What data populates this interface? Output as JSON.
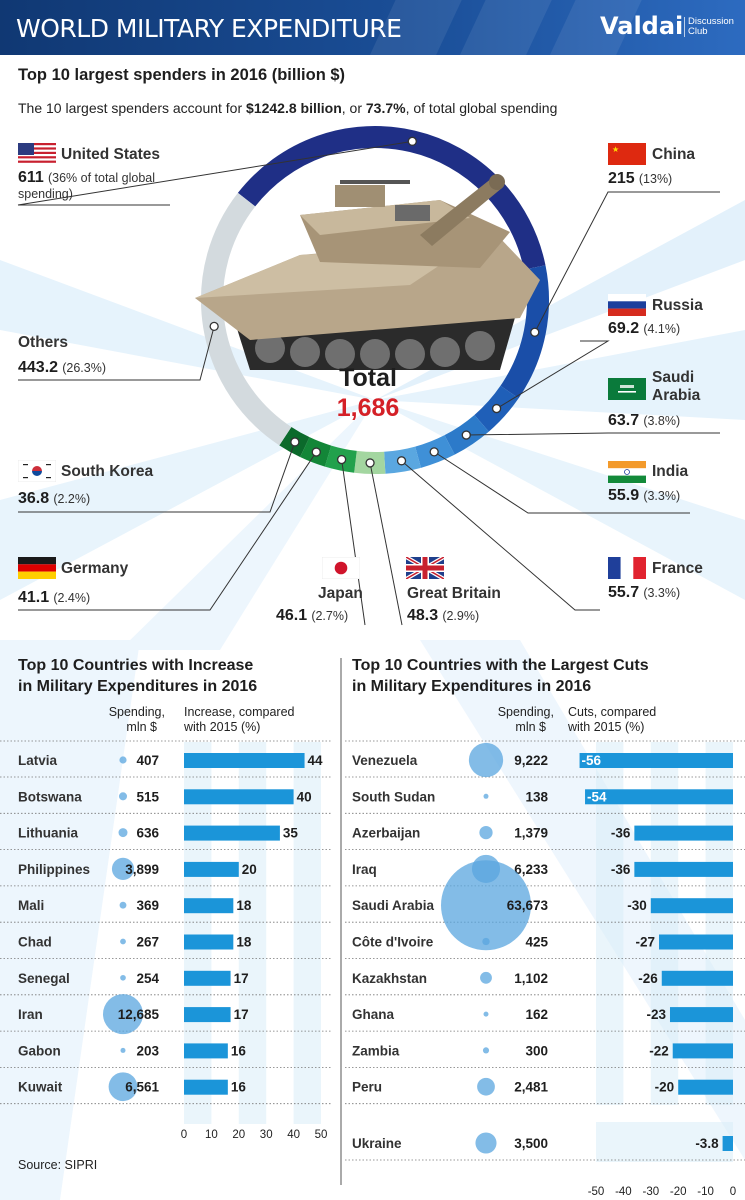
{
  "header": {
    "title": "WORLD MILITARY EXPENDITURE",
    "brand": "Valdai",
    "brand_sub": "Discussion Club"
  },
  "section1": {
    "title": "Top 10 largest spenders in 2016 (billion $)",
    "lead_pre": "The 10 largest spenders account for ",
    "lead_b1": "$1242.8 billion",
    "lead_mid": ", or ",
    "lead_b2": "73.7%",
    "lead_post": ", of total global spending"
  },
  "total": {
    "label": "Total",
    "value": "1,686"
  },
  "colors": {
    "header": "#1a4e97",
    "us": "#1f2f86",
    "china": "#1a4ea8",
    "russia": "#1f5fb8",
    "saudi": "#2c7ac9",
    "india": "#3f90d7",
    "france": "#5aa7e0",
    "gb": "#a3d6a0",
    "japan": "#22a14c",
    "germany": "#138638",
    "skorea": "#0b6a2b",
    "others": "#d3dade",
    "bar": "#1b95d9",
    "bubble": "#5aa6df",
    "total": "#d42027"
  },
  "chart_data": [
    {
      "type": "pie",
      "title": "Top 10 largest spenders in 2016 (billion $)",
      "slices": [
        {
          "key": "us",
          "name": "United States",
          "value": 611,
          "value_text": "611",
          "pct": "(36% of total global spending)",
          "flag": "us-flag-icon"
        },
        {
          "key": "china",
          "name": "China",
          "value": 215,
          "value_text": "215",
          "pct": "(13%)",
          "flag": "china-flag-icon"
        },
        {
          "key": "russia",
          "name": "Russia",
          "value": 69.2,
          "value_text": "69.2",
          "pct": "(4.1%)",
          "flag": "russia-flag-icon"
        },
        {
          "key": "saudi",
          "name": "Saudi Arabia",
          "value": 63.7,
          "value_text": "63.7",
          "pct": "(3.8%)",
          "flag": "saudi-flag-icon"
        },
        {
          "key": "india",
          "name": "India",
          "value": 55.9,
          "value_text": "55.9",
          "pct": "(3.3%)",
          "flag": "india-flag-icon"
        },
        {
          "key": "france",
          "name": "France",
          "value": 55.7,
          "value_text": "55.7",
          "pct": "(3.3%)",
          "flag": "france-flag-icon"
        },
        {
          "key": "gb",
          "name": "Great Britain",
          "value": 48.3,
          "value_text": "48.3",
          "pct": "(2.9%)",
          "flag": "uk-flag-icon"
        },
        {
          "key": "japan",
          "name": "Japan",
          "value": 46.1,
          "value_text": "46.1",
          "pct": "(2.7%)",
          "flag": "japan-flag-icon"
        },
        {
          "key": "germany",
          "name": "Germany",
          "value": 41.1,
          "value_text": "41.1",
          "pct": "(2.4%)",
          "flag": "germany-flag-icon"
        },
        {
          "key": "skorea",
          "name": "South Korea",
          "value": 36.8,
          "value_text": "36.8",
          "pct": "(2.2%)",
          "flag": "south-korea-flag-icon"
        },
        {
          "key": "others",
          "name": "Others",
          "value": 443.2,
          "value_text": "443.2",
          "pct": "(26.3%)",
          "flag": ""
        }
      ]
    },
    {
      "type": "bar",
      "title": "Top 10 Countries with Increase in Military Expenditures in 2016",
      "spending_header": "Spending, mln $",
      "change_header": "Increase, compared with 2015 (%)",
      "xlim": [
        0,
        50
      ],
      "ticks": [
        "0",
        "10",
        "20",
        "30",
        "40",
        "50"
      ],
      "rows": [
        {
          "country": "Latvia",
          "spending": 407,
          "spending_text": "407",
          "change": 44
        },
        {
          "country": "Botswana",
          "spending": 515,
          "spending_text": "515",
          "change": 40
        },
        {
          "country": "Lithuania",
          "spending": 636,
          "spending_text": "636",
          "change": 35
        },
        {
          "country": "Philippines",
          "spending": 3899,
          "spending_text": "3,899",
          "change": 20
        },
        {
          "country": "Mali",
          "spending": 369,
          "spending_text": "369",
          "change": 18
        },
        {
          "country": "Chad",
          "spending": 267,
          "spending_text": "267",
          "change": 18
        },
        {
          "country": "Senegal",
          "spending": 254,
          "spending_text": "254",
          "change": 17
        },
        {
          "country": "Iran",
          "spending": 12685,
          "spending_text": "12,685",
          "change": 17
        },
        {
          "country": "Gabon",
          "spending": 203,
          "spending_text": "203",
          "change": 16
        },
        {
          "country": "Kuwait",
          "spending": 6561,
          "spending_text": "6,561",
          "change": 16
        }
      ]
    },
    {
      "type": "bar",
      "title": "Top 10 Countries with the Largest Cuts in Military Expenditures in 2016",
      "spending_header": "Spending, mln $",
      "change_header": "Cuts, compared with 2015 (%)",
      "xlim": [
        -50,
        0
      ],
      "ticks": [
        "-50",
        "-40",
        "-30",
        "-20",
        "-10",
        "0"
      ],
      "rows": [
        {
          "country": "Venezuela",
          "spending": 9222,
          "spending_text": "9,222",
          "change": -56
        },
        {
          "country": "South Sudan",
          "spending": 138,
          "spending_text": "138",
          "change": -54
        },
        {
          "country": "Azerbaijan",
          "spending": 1379,
          "spending_text": "1,379",
          "change": -36
        },
        {
          "country": "Iraq",
          "spending": 6233,
          "spending_text": "6,233",
          "change": -36
        },
        {
          "country": "Saudi Arabia",
          "spending": 63673,
          "spending_text": "63,673",
          "change": -30
        },
        {
          "country": "Côte d'Ivoire",
          "spending": 425,
          "spending_text": "425",
          "change": -27
        },
        {
          "country": "Kazakhstan",
          "spending": 1102,
          "spending_text": "1,102",
          "change": -26
        },
        {
          "country": "Ghana",
          "spending": 162,
          "spending_text": "162",
          "change": -23
        },
        {
          "country": "Zambia",
          "spending": 300,
          "spending_text": "300",
          "change": -22
        },
        {
          "country": "Peru",
          "spending": 2481,
          "spending_text": "2,481",
          "change": -20
        }
      ],
      "extra_row": {
        "country": "Ukraine",
        "spending": 3500,
        "spending_text": "3,500",
        "change": -3.8
      }
    }
  ],
  "source": "Source: SIPRI"
}
